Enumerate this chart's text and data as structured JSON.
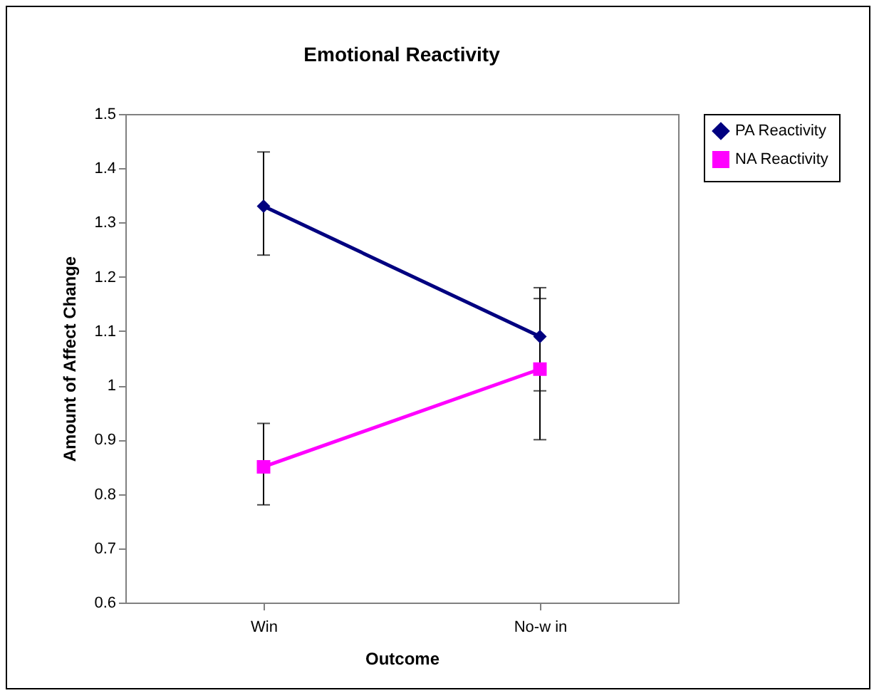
{
  "chart_data": {
    "type": "line",
    "title": "Emotional Reactivity",
    "xlabel": "Outcome",
    "ylabel": "Amount of Affect Change",
    "categories": [
      "Win",
      "No-w in"
    ],
    "series": [
      {
        "name": "PA Reactivity",
        "color": "#000080",
        "marker": "diamond",
        "values": [
          1.33,
          1.09
        ],
        "errors": [
          [
            1.24,
            1.43
          ],
          [
            0.99,
            1.18
          ]
        ]
      },
      {
        "name": "NA Reactivity",
        "color": "#ff00ff",
        "marker": "square",
        "values": [
          0.85,
          1.03
        ],
        "errors": [
          [
            0.78,
            0.93
          ],
          [
            0.9,
            1.16
          ]
        ]
      }
    ],
    "ylim": [
      0.6,
      1.5
    ],
    "yticks": [
      0.6,
      0.7,
      0.8,
      0.9,
      1,
      1.1,
      1.2,
      1.3,
      1.4,
      1.5
    ],
    "grid": false,
    "legend": "right",
    "line_style": "solid"
  }
}
